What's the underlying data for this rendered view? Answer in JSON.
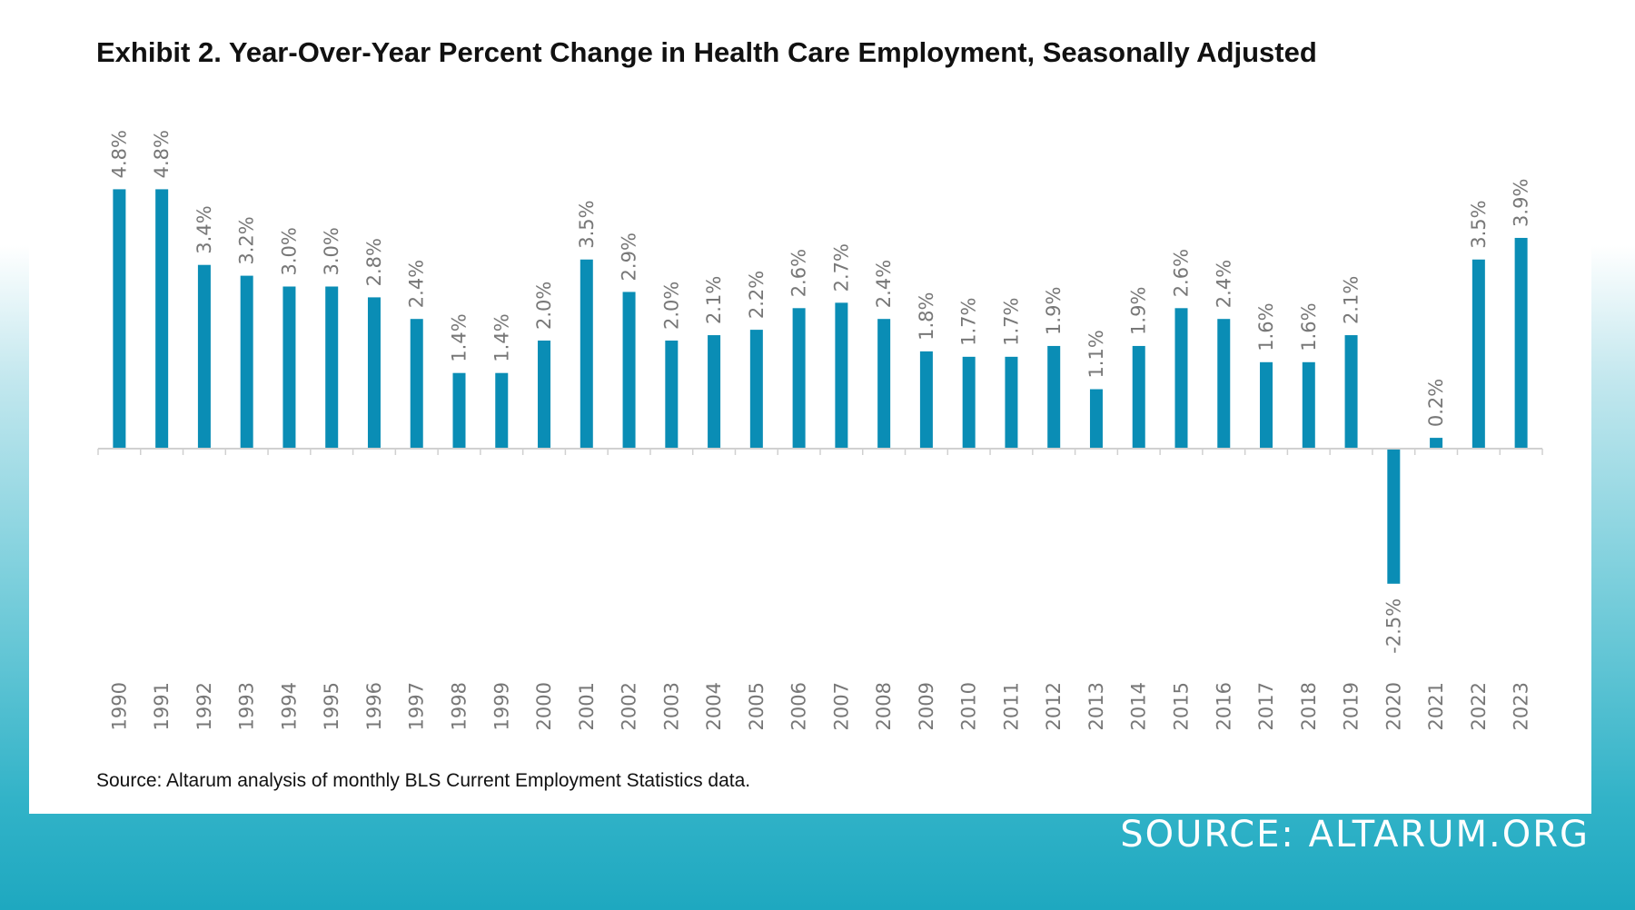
{
  "chart_data": {
    "type": "bar",
    "title": "Exhibit 2. Year-Over-Year Percent Change in Health Care Employment, Seasonally Adjusted",
    "xlabel": "",
    "ylabel": "",
    "categories": [
      "1990",
      "1991",
      "1992",
      "1993",
      "1994",
      "1995",
      "1996",
      "1997",
      "1998",
      "1999",
      "2000",
      "2001",
      "2002",
      "2003",
      "2004",
      "2005",
      "2006",
      "2007",
      "2008",
      "2009",
      "2010",
      "2011",
      "2012",
      "2013",
      "2014",
      "2015",
      "2016",
      "2017",
      "2018",
      "2019",
      "2020",
      "2021",
      "2022",
      "2023"
    ],
    "values": [
      4.8,
      4.8,
      3.4,
      3.2,
      3.0,
      3.0,
      2.8,
      2.4,
      1.4,
      1.4,
      2.0,
      3.5,
      2.9,
      2.0,
      2.1,
      2.2,
      2.6,
      2.7,
      2.4,
      1.8,
      1.7,
      1.7,
      1.9,
      1.1,
      1.9,
      2.6,
      2.4,
      1.6,
      1.6,
      2.1,
      -2.5,
      0.2,
      3.5,
      3.9
    ],
    "data_labels": [
      "4.8%",
      "4.8%",
      "3.4%",
      "3.2%",
      "3.0%",
      "3.0%",
      "2.8%",
      "2.4%",
      "1.4%",
      "1.4%",
      "2.0%",
      "3.5%",
      "2.9%",
      "2.0%",
      "2.1%",
      "2.2%",
      "2.6%",
      "2.7%",
      "2.4%",
      "1.8%",
      "1.7%",
      "1.7%",
      "1.9%",
      "1.1%",
      "1.9%",
      "2.6%",
      "2.4%",
      "1.6%",
      "1.6%",
      "2.1%",
      "-2.5%",
      "0.2%",
      "3.5%",
      "3.9%"
    ],
    "ylim": [
      -4,
      5.5
    ],
    "grid": false,
    "legend": "none",
    "bar_color": "#0a8db5"
  },
  "source_note": "Source: Altarum analysis of monthly BLS Current Employment Statistics data.",
  "footer": {
    "source": "SOURCE: ALTARUM.ORG"
  },
  "colors": {
    "background_gradient_top": "#ffffff",
    "background_gradient_bottom": "#1ea8c0",
    "card": "#ffffff",
    "text": "#111111",
    "labels": "#777777"
  }
}
